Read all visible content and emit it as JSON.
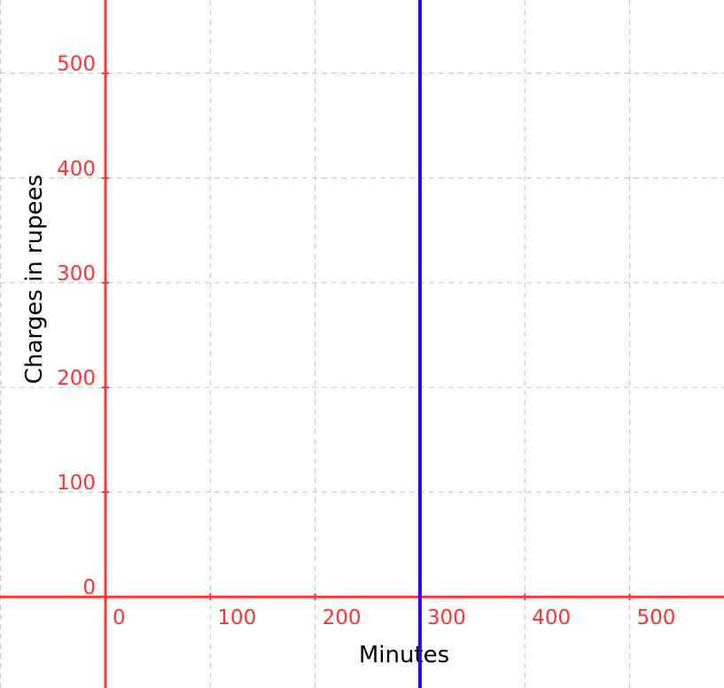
{
  "chart_data": {
    "type": "line",
    "title": "",
    "xlabel": "Minutes",
    "ylabel": "Charges in rupees",
    "xlim": [
      -100.6,
      590
    ],
    "ylim": [
      -87,
      570
    ],
    "grid": true,
    "x_ticks": [
      0,
      100,
      200,
      300,
      400,
      500
    ],
    "y_ticks": [
      0,
      100,
      200,
      300,
      400,
      500
    ],
    "x_tick_labels": [
      "0",
      "100",
      "200",
      "300",
      "400",
      "500"
    ],
    "y_tick_labels": [
      "0",
      "100",
      "200",
      "300",
      "400",
      "500"
    ],
    "series": [
      {
        "kind": "vertical-line",
        "x": 300,
        "color": "#3300ff"
      }
    ],
    "colors": {
      "axes": "#ff3333",
      "tick_labels": "#ff3333",
      "grid": "#c0c0c0",
      "axis_labels": "#000000"
    }
  }
}
